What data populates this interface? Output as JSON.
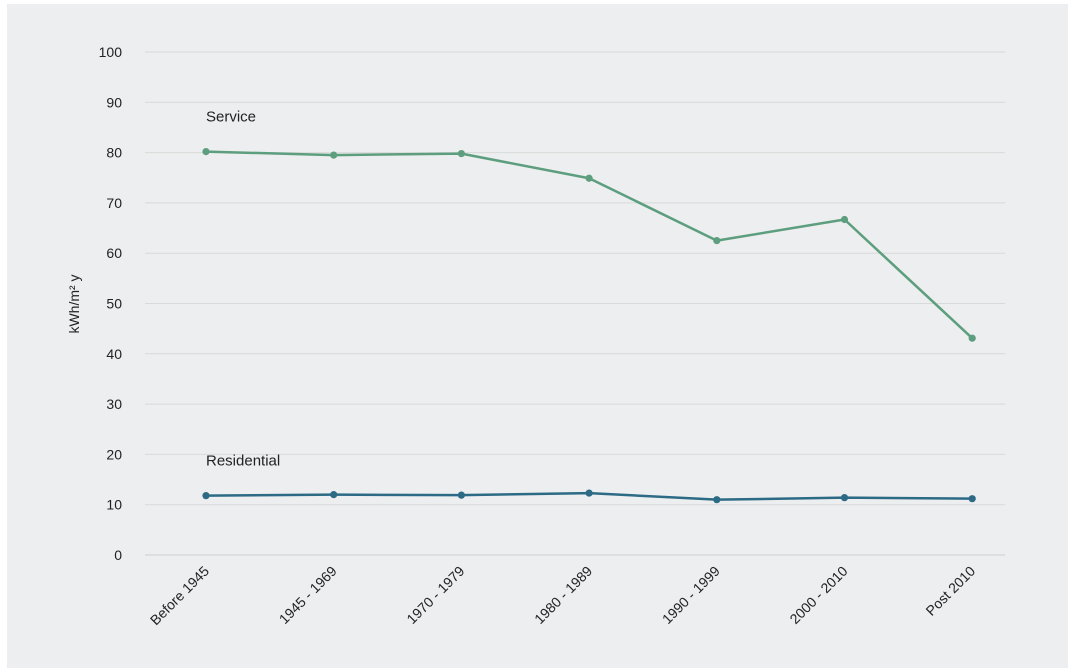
{
  "chart_data": {
    "type": "line",
    "ylabel": "kWh/m² y",
    "ylim": [
      0,
      100
    ],
    "yticks": [
      0,
      10,
      20,
      30,
      40,
      50,
      60,
      70,
      80,
      90,
      100
    ],
    "grid": true,
    "categories": [
      "Before 1945",
      "1945 - 1969",
      "1970 - 1979",
      "1980 - 1989",
      "1990 - 1999",
      "2000 - 2010",
      "Post 2010"
    ],
    "series": [
      {
        "name": "Service",
        "color": "#5d9e7e",
        "values": [
          80.2,
          79.5,
          79.8,
          74.9,
          62.5,
          66.7,
          43.1
        ]
      },
      {
        "name": "Residential",
        "color": "#2d6a85",
        "values": [
          11.8,
          12.0,
          11.9,
          12.3,
          11.0,
          11.4,
          11.2
        ]
      }
    ]
  }
}
